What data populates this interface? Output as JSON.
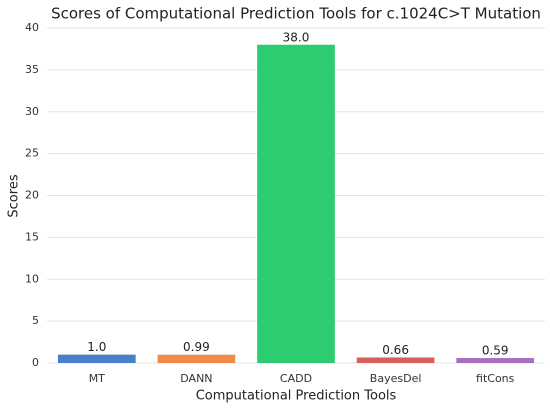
{
  "chart_data": {
    "type": "bar",
    "title": "Scores of Computational Prediction Tools for c.1024C>T Mutation",
    "x_label": "Computational Prediction Tools",
    "y_label": "Scores",
    "categories": [
      "MT",
      "DANN",
      "CADD",
      "BayesDel",
      "fitCons"
    ],
    "values": [
      1.0,
      0.99,
      38.0,
      0.66,
      0.59
    ],
    "value_labels": [
      "1.0",
      "0.99",
      "38.0",
      "0.66",
      "0.59"
    ],
    "colors": [
      "#4a7fc9",
      "#f08a4b",
      "#2ecc71",
      "#d9605a",
      "#a66fc0"
    ],
    "ylim": [
      0,
      40
    ],
    "yticks": [
      0,
      5,
      10,
      15,
      20,
      25,
      30,
      35,
      40
    ],
    "grid": true
  }
}
